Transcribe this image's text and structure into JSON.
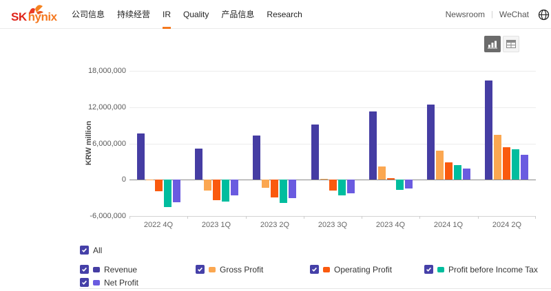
{
  "header": {
    "logo": {
      "sk": "SK",
      "hynix": "hynix",
      "icon": "butterfly-icon"
    },
    "nav": [
      {
        "label": "公司信息",
        "active": false
      },
      {
        "label": "持续经营",
        "active": false
      },
      {
        "label": "IR",
        "active": true
      },
      {
        "label": "Quality",
        "active": false
      },
      {
        "label": "产品信息",
        "active": false
      },
      {
        "label": "Research",
        "active": false
      }
    ],
    "utility": {
      "newsroom": "Newsroom",
      "separator": "|",
      "wechat": "WeChat",
      "globe": "globe-icon"
    }
  },
  "toolbar": {
    "chart_view_icon": "bar-chart-icon",
    "table_view_icon": "table-icon",
    "active_view": "chart"
  },
  "colors": {
    "accent_orange": "#f4791f",
    "logo_red": "#e0251b",
    "logo_orange": "#f57921",
    "checkbox": "#4540a8",
    "zero_line": "#8a8a8a",
    "gridline": "#ececec"
  },
  "chart_data": {
    "type": "bar",
    "title": "",
    "xlabel": "",
    "ylabel": "KRW million",
    "unit": "KRW million",
    "grid": true,
    "legend_position": "bottom",
    "ylim": [
      -6000000,
      18000000
    ],
    "yticks": [
      {
        "value": 18000000,
        "label": "18,000,000"
      },
      {
        "value": 12000000,
        "label": "12,000,000"
      },
      {
        "value": 6000000,
        "label": "6,000,000"
      },
      {
        "value": 0,
        "label": "0"
      },
      {
        "value": -6000000,
        "label": "-6,000,000"
      }
    ],
    "categories": [
      "2022 4Q",
      "2023 1Q",
      "2023 2Q",
      "2023 3Q",
      "2023 4Q",
      "2024 1Q",
      "2024 2Q"
    ],
    "series": [
      {
        "name": "Revenue",
        "color": "#453da3",
        "values": [
          7700000,
          5100000,
          7300000,
          9100000,
          11300000,
          12400000,
          16400000
        ]
      },
      {
        "name": "Gross Profit",
        "color": "#fba751",
        "values": [
          -100000,
          -1800000,
          -1300000,
          100000,
          2200000,
          4800000,
          7400000
        ]
      },
      {
        "name": "Operating Profit",
        "color": "#fa5a0e",
        "values": [
          -1900000,
          -3400000,
          -2900000,
          -1800000,
          300000,
          2900000,
          5400000
        ]
      },
      {
        "name": "Profit before Income Tax",
        "color": "#00bd9e",
        "values": [
          -4500000,
          -3600000,
          -3800000,
          -2600000,
          -1700000,
          2400000,
          5000000
        ]
      },
      {
        "name": "Net Profit",
        "color": "#6a5be0",
        "values": [
          -3700000,
          -2600000,
          -3000000,
          -2200000,
          -1400000,
          1900000,
          4100000
        ]
      }
    ]
  },
  "legend": {
    "all_label": "All"
  }
}
